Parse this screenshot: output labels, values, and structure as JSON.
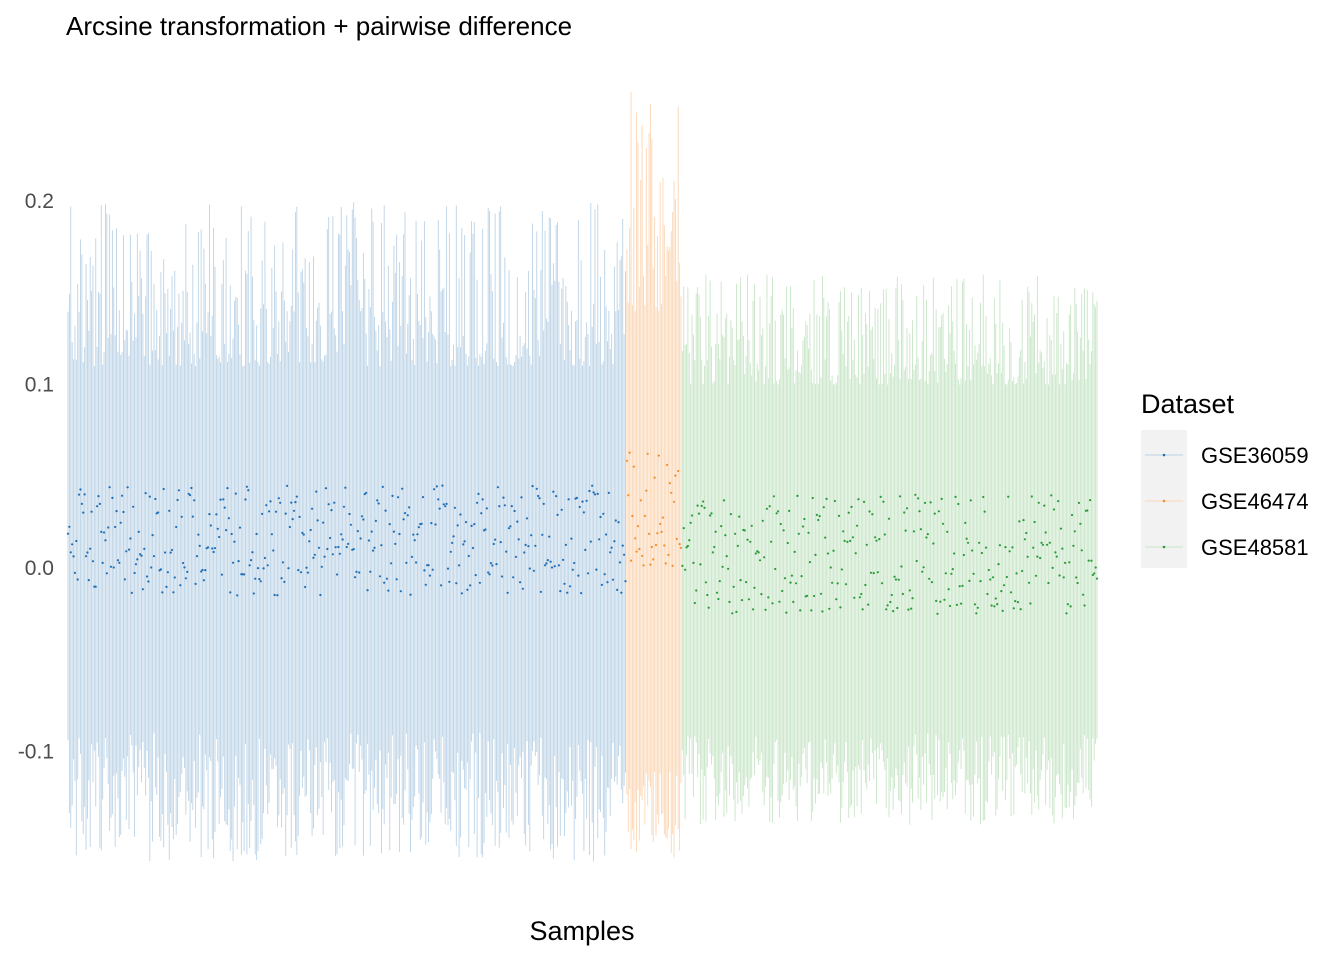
{
  "chart_data": {
    "type": "scatter",
    "title": "Arcsine transformation + pairwise difference",
    "xlabel": "Samples",
    "ylabel": "",
    "ylim": [
      -0.16,
      0.26
    ],
    "yticks": [
      {
        "value": 0.2,
        "label": "0.2"
      },
      {
        "value": 0.1,
        "label": "0.1"
      },
      {
        "value": 0.0,
        "label": "0.0"
      },
      {
        "value": -0.1,
        "label": "-0.1"
      }
    ],
    "x_ticks_shown": false,
    "grid": false,
    "legend": {
      "title": "Dataset",
      "placement": "right",
      "entries": [
        "GSE36059",
        "GSE46474",
        "GSE48581"
      ]
    },
    "series": [
      {
        "name": "GSE36059",
        "color": "#1f6fb8",
        "range_color": "#bcd3e6",
        "n_samples": 403,
        "median_approx_range": [
          -0.015,
          0.045
        ],
        "whisker_low_approx_range": [
          -0.16,
          -0.09
        ],
        "whisker_high_approx_range": [
          0.11,
          0.2
        ]
      },
      {
        "name": "GSE46474",
        "color": "#f28e2b",
        "range_color": "#fbd6b5",
        "n_samples": 40,
        "median_approx_range": [
          0.0,
          0.063
        ],
        "whisker_low_approx_range": [
          -0.16,
          -0.11
        ],
        "whisker_high_approx_range": [
          0.14,
          0.26
        ]
      },
      {
        "name": "GSE48581",
        "color": "#2a9b3a",
        "range_color": "#c8e5c7",
        "n_samples": 300,
        "median_approx_range": [
          -0.025,
          0.04
        ],
        "whisker_low_approx_range": [
          -0.14,
          -0.09
        ],
        "whisker_high_approx_range": [
          0.1,
          0.16
        ]
      }
    ]
  }
}
